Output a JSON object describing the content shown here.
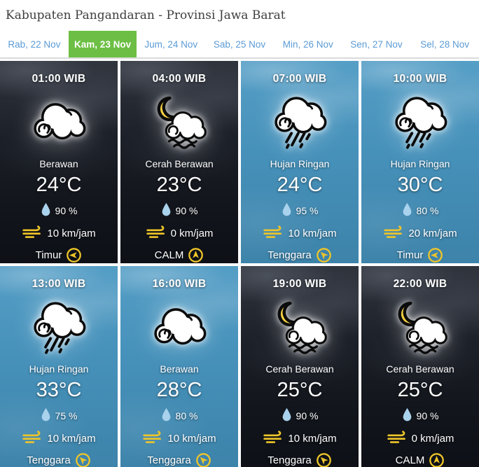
{
  "header": {
    "title": "Kabupaten Pangandaran - Provinsi Jawa Barat"
  },
  "tabs": [
    {
      "label": "Rab, 22 Nov",
      "active": false
    },
    {
      "label": "Kam, 23 Nov",
      "active": true
    },
    {
      "label": "Jum, 24 Nov",
      "active": false
    },
    {
      "label": "Sab, 25 Nov",
      "active": false
    },
    {
      "label": "Min, 26 Nov",
      "active": false
    },
    {
      "label": "Sen, 27 Nov",
      "active": false
    },
    {
      "label": "Sel, 28 Nov",
      "active": false
    }
  ],
  "colors": {
    "active_tab_green": "#6cbf44",
    "tab_text_blue": "#5b9bd5",
    "accent_yellow": "#eec529",
    "moon_yellow": "#f6d041",
    "droplet_blue": "#a9d2ed",
    "day_card_blue": "#4691ba",
    "night_card_dark": "#171b22"
  },
  "cards": [
    {
      "time": "01:00 WIB",
      "icon": "cloud",
      "condition": "Berawan",
      "temp": "24°C",
      "humidity": "90 %",
      "wind_speed": "10 km/jam",
      "wind_dir": "Timur",
      "arrow": "left",
      "theme": "night"
    },
    {
      "time": "04:00 WIB",
      "icon": "moon-cloud",
      "condition": "Cerah Berawan",
      "temp": "23°C",
      "humidity": "90 %",
      "wind_speed": "0 km/jam",
      "wind_dir": "CALM",
      "arrow": "up",
      "theme": "night"
    },
    {
      "time": "07:00 WIB",
      "icon": "rain-cloud",
      "condition": "Hujan Ringan",
      "temp": "24°C",
      "humidity": "95 %",
      "wind_speed": "10 km/jam",
      "wind_dir": "Tenggara",
      "arrow": "up-left",
      "theme": "day"
    },
    {
      "time": "10:00 WIB",
      "icon": "rain-cloud",
      "condition": "Hujan Ringan",
      "temp": "30°C",
      "humidity": "80 %",
      "wind_speed": "20 km/jam",
      "wind_dir": "Timur",
      "arrow": "left",
      "theme": "day"
    },
    {
      "time": "13:00 WIB",
      "icon": "rain-cloud",
      "condition": "Hujan Ringan",
      "temp": "33°C",
      "humidity": "75 %",
      "wind_speed": "10 km/jam",
      "wind_dir": "Tenggara",
      "arrow": "up-left",
      "theme": "day"
    },
    {
      "time": "16:00 WIB",
      "icon": "cloud",
      "condition": "Berawan",
      "temp": "28°C",
      "humidity": "80 %",
      "wind_speed": "10 km/jam",
      "wind_dir": "Tenggara",
      "arrow": "up-left",
      "theme": "day"
    },
    {
      "time": "19:00 WIB",
      "icon": "moon-cloud",
      "condition": "Cerah Berawan",
      "temp": "25°C",
      "humidity": "90 %",
      "wind_speed": "10 km/jam",
      "wind_dir": "Tenggara",
      "arrow": "up-left",
      "theme": "night"
    },
    {
      "time": "22:00 WIB",
      "icon": "moon-cloud",
      "condition": "Cerah Berawan",
      "temp": "25°C",
      "humidity": "90 %",
      "wind_speed": "0 km/jam",
      "wind_dir": "CALM",
      "arrow": "up",
      "theme": "night"
    }
  ]
}
